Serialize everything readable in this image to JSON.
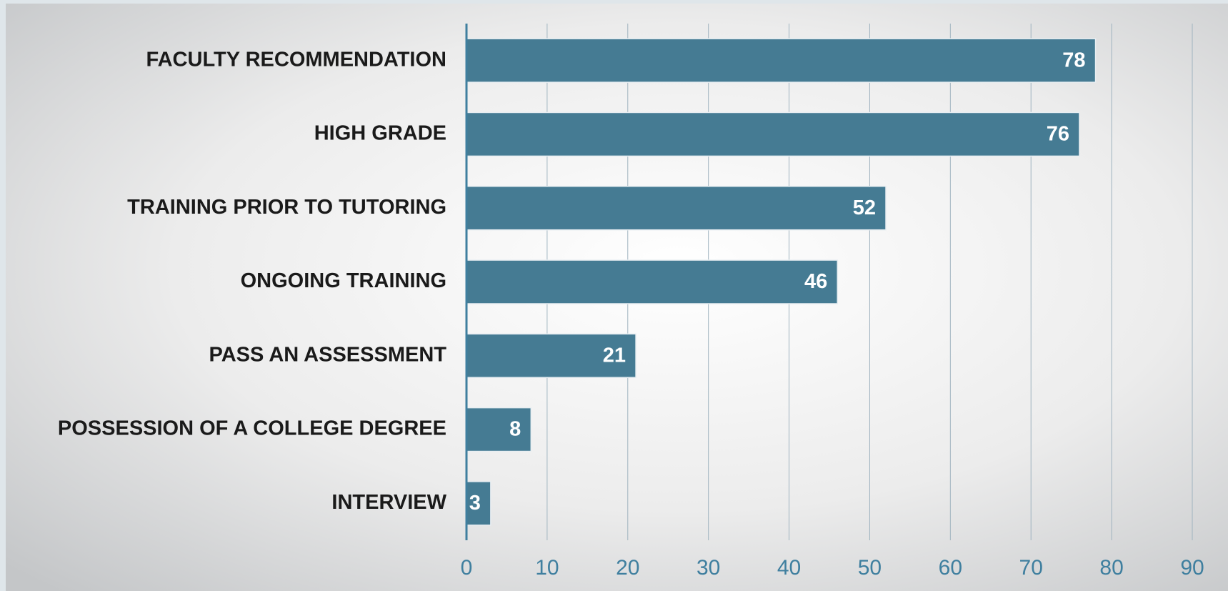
{
  "chart_data": {
    "type": "bar",
    "orientation": "horizontal",
    "categories": [
      "FACULTY RECOMMENDATION",
      "HIGH GRADE",
      "TRAINING PRIOR TO TUTORING",
      "ONGOING TRAINING",
      "PASS AN ASSESSMENT",
      "POSSESSION OF A COLLEGE DEGREE",
      "INTERVIEW"
    ],
    "values": [
      78,
      76,
      52,
      46,
      21,
      8,
      3
    ],
    "color": "#457b93",
    "xlim": [
      0,
      90
    ],
    "xticks": [
      0,
      10,
      20,
      30,
      40,
      50,
      60,
      70,
      80,
      90
    ],
    "grid": true
  }
}
